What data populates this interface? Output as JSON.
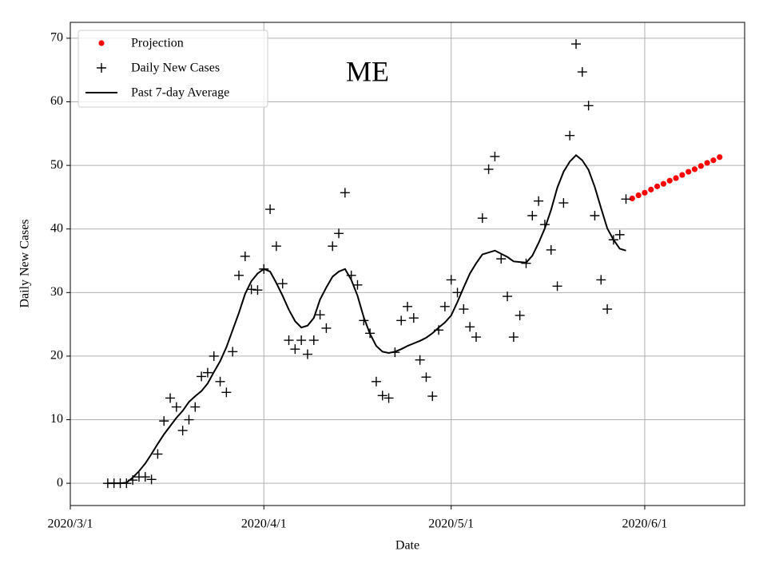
{
  "chart_data": {
    "type": "line",
    "annotation": "ME",
    "xlabel": "Date",
    "ylabel": "Daily New Cases",
    "xlim": [
      "2020/3/1",
      "2020/6/17"
    ],
    "xticks": [
      "2020/3/1",
      "2020/4/1",
      "2020/5/1",
      "2020/6/1"
    ],
    "ylim": [
      -3.5,
      72.5
    ],
    "yticks": [
      0,
      10,
      20,
      30,
      40,
      50,
      60,
      70
    ],
    "grid": true,
    "legend": "upper left",
    "series": [
      {
        "name": "Projection",
        "color": "#ff0000",
        "marker": "dot",
        "x": [
          "2020/5/30",
          "2020/5/31",
          "2020/6/1",
          "2020/6/2",
          "2020/6/3",
          "2020/6/4",
          "2020/6/5",
          "2020/6/6",
          "2020/6/7",
          "2020/6/8",
          "2020/6/9",
          "2020/6/10",
          "2020/6/11",
          "2020/6/12",
          "2020/6/13"
        ],
        "values": [
          44.8,
          45.3,
          45.7,
          46.2,
          46.7,
          47.1,
          47.6,
          48.0,
          48.5,
          49.0,
          49.4,
          49.9,
          50.4,
          50.8,
          51.3
        ]
      },
      {
        "name": "Daily New Cases",
        "color": "#000000",
        "marker": "+",
        "x": [
          "2020/3/7",
          "2020/3/8",
          "2020/3/9",
          "2020/3/10",
          "2020/3/11",
          "2020/3/12",
          "2020/3/13",
          "2020/3/14",
          "2020/3/15",
          "2020/3/16",
          "2020/3/17",
          "2020/3/18",
          "2020/3/19",
          "2020/3/20",
          "2020/3/21",
          "2020/3/22",
          "2020/3/23",
          "2020/3/24",
          "2020/3/25",
          "2020/3/26",
          "2020/3/27",
          "2020/3/28",
          "2020/3/29",
          "2020/3/30",
          "2020/3/31",
          "2020/4/1",
          "2020/4/2",
          "2020/4/3",
          "2020/4/4",
          "2020/4/5",
          "2020/4/6",
          "2020/4/7",
          "2020/4/8",
          "2020/4/9",
          "2020/4/10",
          "2020/4/11",
          "2020/4/12",
          "2020/4/13",
          "2020/4/14",
          "2020/4/15",
          "2020/4/16",
          "2020/4/17",
          "2020/4/18",
          "2020/4/19",
          "2020/4/20",
          "2020/4/21",
          "2020/4/22",
          "2020/4/23",
          "2020/4/24",
          "2020/4/25",
          "2020/4/26",
          "2020/4/27",
          "2020/4/28",
          "2020/4/29",
          "2020/4/30",
          "2020/5/1",
          "2020/5/2",
          "2020/5/3",
          "2020/5/4",
          "2020/5/5",
          "2020/5/6",
          "2020/5/7",
          "2020/5/8",
          "2020/5/9",
          "2020/5/10",
          "2020/5/11",
          "2020/5/12",
          "2020/5/13",
          "2020/5/14",
          "2020/5/15",
          "2020/5/16",
          "2020/5/17",
          "2020/5/18",
          "2020/5/19",
          "2020/5/20",
          "2020/5/21",
          "2020/5/22",
          "2020/5/23",
          "2020/5/24",
          "2020/5/25",
          "2020/5/26",
          "2020/5/27",
          "2020/5/28",
          "2020/5/29"
        ],
        "values": [
          0,
          0,
          0,
          0,
          0.5,
          1,
          1,
          0.6,
          4.6,
          9.8,
          13.4,
          12,
          8.3,
          10,
          12,
          16.8,
          17.4,
          20,
          16,
          14.3,
          20.7,
          32.7,
          35.7,
          30.5,
          30.4,
          33.7,
          43.1,
          37.3,
          31.4,
          22.5,
          21.1,
          22.5,
          20.3,
          22.5,
          26.5,
          24.4,
          37.3,
          39.3,
          45.7,
          32.7,
          31.2,
          25.6,
          23.6,
          16,
          13.8,
          13.4,
          20.6,
          25.6,
          27.8,
          26,
          19.4,
          16.7,
          13.7,
          24.1,
          27.8,
          32,
          30,
          27.4,
          24.6,
          23,
          41.7,
          49.4,
          51.4,
          35.3,
          29.4,
          23,
          26.4,
          34.6,
          42.1,
          44.4,
          40.7,
          36.7,
          31,
          44.1,
          54.7,
          69.1,
          64.7,
          59.4,
          42.1,
          32,
          27.4,
          38.3,
          39.1,
          44.7
        ]
      },
      {
        "name": "Past 7-day Average",
        "color": "#000000",
        "marker": "line",
        "x": [
          "2020/3/7",
          "2020/3/8",
          "2020/3/9",
          "2020/3/10",
          "2020/3/11",
          "2020/3/12",
          "2020/3/13",
          "2020/3/14",
          "2020/3/15",
          "2020/3/16",
          "2020/3/17",
          "2020/3/18",
          "2020/3/19",
          "2020/3/20",
          "2020/3/21",
          "2020/3/22",
          "2020/3/23",
          "2020/3/24",
          "2020/3/25",
          "2020/3/26",
          "2020/3/27",
          "2020/3/28",
          "2020/3/29",
          "2020/3/30",
          "2020/3/31",
          "2020/4/1",
          "2020/4/2",
          "2020/4/3",
          "2020/4/4",
          "2020/4/5",
          "2020/4/6",
          "2020/4/7",
          "2020/4/8",
          "2020/4/9",
          "2020/4/10",
          "2020/4/11",
          "2020/4/12",
          "2020/4/13",
          "2020/4/14",
          "2020/4/15",
          "2020/4/16",
          "2020/4/17",
          "2020/4/18",
          "2020/4/19",
          "2020/4/20",
          "2020/4/21",
          "2020/4/22",
          "2020/4/23",
          "2020/4/24",
          "2020/4/25",
          "2020/4/26",
          "2020/4/27",
          "2020/4/28",
          "2020/4/29",
          "2020/4/30",
          "2020/5/1",
          "2020/5/2",
          "2020/5/3",
          "2020/5/4",
          "2020/5/5",
          "2020/5/6",
          "2020/5/7",
          "2020/5/8",
          "2020/5/9",
          "2020/5/10",
          "2020/5/11",
          "2020/5/12",
          "2020/5/13",
          "2020/5/14",
          "2020/5/15",
          "2020/5/16",
          "2020/5/17",
          "2020/5/18",
          "2020/5/19",
          "2020/5/20",
          "2020/5/21",
          "2020/5/22",
          "2020/5/23",
          "2020/5/24",
          "2020/5/25",
          "2020/5/26",
          "2020/5/27",
          "2020/5/28",
          "2020/5/29"
        ],
        "values": [
          0,
          0,
          0,
          0.1,
          0.9,
          1.9,
          3.1,
          4.6,
          6.2,
          7.7,
          9,
          10.3,
          11.4,
          12.8,
          13.7,
          14.5,
          15.7,
          17.5,
          19.2,
          21.4,
          24.1,
          26.8,
          29.8,
          31.8,
          33,
          33.7,
          33.3,
          31.5,
          29.5,
          27.3,
          25.5,
          24.5,
          24.8,
          26,
          28.9,
          30.8,
          32.5,
          33.3,
          33.7,
          32,
          29.5,
          26.1,
          23.5,
          21.6,
          20.7,
          20.5,
          20.7,
          21.1,
          21.6,
          22,
          22.4,
          22.9,
          23.6,
          24.5,
          25.3,
          26.4,
          28.5,
          30.8,
          33,
          34.6,
          36,
          36.3,
          36.6,
          36.1,
          35.6,
          34.9,
          34.8,
          34.7,
          35.8,
          37.8,
          40.1,
          43,
          46.5,
          49,
          50.6,
          51.6,
          50.8,
          49.3,
          46.6,
          43.3,
          40.1,
          38.3,
          36.9,
          36.6
        ]
      }
    ]
  }
}
